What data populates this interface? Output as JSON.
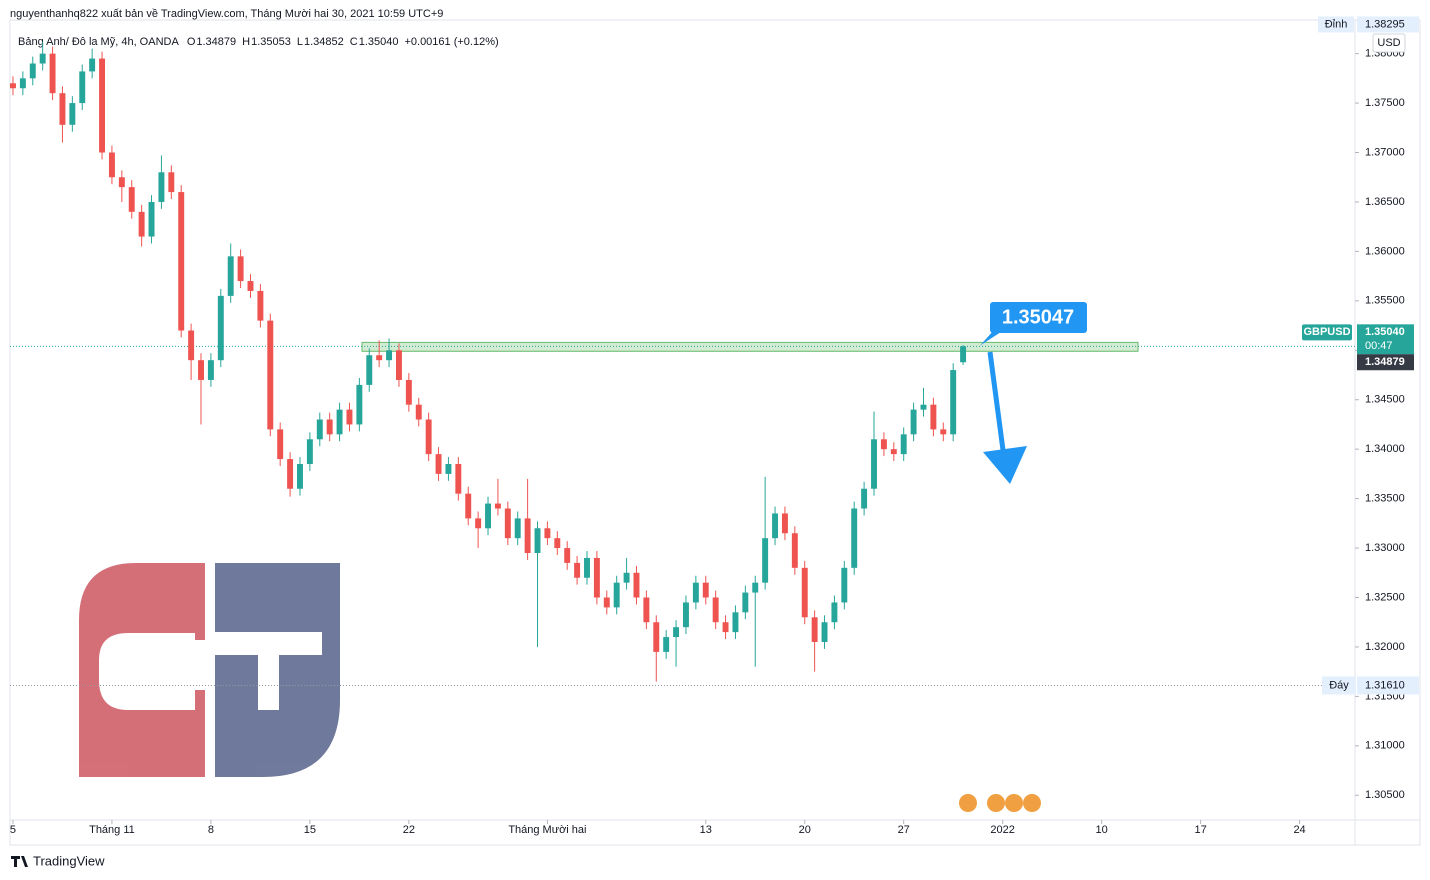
{
  "chart_data": {
    "type": "candlestick",
    "title": "nguyenthanhq822 xuất bản về TradingView.com, Tháng Mười hai 30, 2021 10:59 UTC+9",
    "symbol": "Bảng Anh/ Đô la Mỹ, 4h, OANDA",
    "legend_values": [
      {
        "name": "O",
        "value": 1.34879,
        "label": "1.34879"
      },
      {
        "name": "H",
        "value": 1.35053,
        "label": "1.35053"
      },
      {
        "name": "L",
        "value": 1.34852,
        "label": "1.34852"
      },
      {
        "name": "C",
        "value": 1.3504,
        "label": "1.35040"
      }
    ],
    "change": "+0.00161 (+0.12%)",
    "currency": "USD",
    "ticker": "GBPUSD",
    "last_price": {
      "value": 1.3504,
      "label": "1.35040"
    },
    "countdown": "00:47",
    "open_price": {
      "value": 1.34879,
      "label": "1.34879"
    },
    "high_marker": {
      "name": "Đỉnh",
      "value": 1.38295,
      "label": "1.38295"
    },
    "low_marker": {
      "name": "Đáy",
      "value": 1.3161,
      "label": "1.31610"
    },
    "callout": {
      "value": 1.35047,
      "label": "1.35047"
    },
    "zone": [
      1.3499,
      1.3508
    ],
    "colors": {
      "up": "#26a69a",
      "down": "#ef5350"
    },
    "brand": "TradingView",
    "x": [
      0,
      0.5,
      1,
      1.5,
      2,
      2.5,
      3,
      3.5,
      4,
      4.5,
      5,
      5.5,
      6,
      6.5,
      7,
      7.5,
      8,
      8.5,
      9,
      9.5,
      10,
      10.5,
      11,
      11.5,
      12,
      12.5,
      13,
      13.5,
      14,
      14.5,
      15,
      15.5,
      16,
      16.5,
      17,
      17.5,
      18,
      18.5,
      19,
      19.5,
      20,
      20.5,
      21,
      21.5,
      22,
      22.5,
      23,
      23.5,
      24,
      24.5,
      25,
      25.5,
      26,
      26.5,
      27,
      27.5,
      28,
      28.5,
      29,
      29.5,
      30,
      30.5,
      31,
      31.5,
      32,
      32.5,
      33,
      33.5,
      34,
      34.5,
      35,
      35.5,
      36,
      36.5,
      37,
      37.5,
      38,
      38.5,
      39,
      39.5,
      40,
      40.5,
      41,
      41.5,
      42,
      42.5,
      43,
      43.5,
      44,
      44.5,
      45,
      45.5,
      46,
      46.5,
      47,
      47.5,
      48
    ],
    "open": [
      1.377,
      1.3765,
      1.3775,
      1.379,
      1.38,
      1.376,
      1.3728,
      1.375,
      1.3782,
      1.3795,
      1.37,
      1.3675,
      1.3665,
      1.364,
      1.3615,
      1.365,
      1.368,
      1.366,
      1.352,
      1.349,
      1.347,
      1.349,
      1.3555,
      1.3595,
      1.357,
      1.356,
      1.353,
      1.342,
      1.339,
      1.336,
      1.3385,
      1.341,
      1.343,
      1.3415,
      1.344,
      1.3425,
      1.3465,
      1.3495,
      1.349,
      1.35,
      1.347,
      1.3445,
      1.343,
      1.3395,
      1.3375,
      1.3385,
      1.3355,
      1.333,
      1.332,
      1.3345,
      1.334,
      1.331,
      1.333,
      1.3295,
      1.332,
      1.331,
      1.33,
      1.3285,
      1.327,
      1.329,
      1.325,
      1.324,
      1.3265,
      1.3275,
      1.325,
      1.3225,
      1.3195,
      1.321,
      1.322,
      1.3245,
      1.3265,
      1.325,
      1.3225,
      1.3215,
      1.3235,
      1.3255,
      1.3265,
      1.331,
      1.3335,
      1.3315,
      1.328,
      1.323,
      1.3205,
      1.3225,
      1.3245,
      1.328,
      1.334,
      1.336,
      1.341,
      1.34,
      1.3395,
      1.3415,
      1.344,
      1.3445,
      1.342,
      1.3415,
      1.34879
    ],
    "high": [
      1.3777,
      1.3782,
      1.3797,
      1.3812,
      1.3807,
      1.3767,
      1.3757,
      1.3789,
      1.3805,
      1.3802,
      1.3707,
      1.3682,
      1.3672,
      1.3647,
      1.3657,
      1.3697,
      1.3687,
      1.3667,
      1.3527,
      1.3497,
      1.3497,
      1.3562,
      1.3608,
      1.3602,
      1.3577,
      1.3567,
      1.3537,
      1.3427,
      1.3397,
      1.3392,
      1.3417,
      1.3437,
      1.3437,
      1.3447,
      1.3447,
      1.3472,
      1.3502,
      1.351,
      1.3512,
      1.3507,
      1.3477,
      1.3452,
      1.3437,
      1.3402,
      1.3392,
      1.3392,
      1.3362,
      1.3337,
      1.3352,
      1.337,
      1.3347,
      1.3337,
      1.337,
      1.3327,
      1.3327,
      1.3317,
      1.3307,
      1.3292,
      1.3297,
      1.3297,
      1.3257,
      1.3272,
      1.329,
      1.3282,
      1.3257,
      1.3232,
      1.3217,
      1.3227,
      1.3252,
      1.3272,
      1.3272,
      1.3257,
      1.3232,
      1.3242,
      1.3262,
      1.3272,
      1.3372,
      1.3342,
      1.3342,
      1.3322,
      1.3287,
      1.3237,
      1.3232,
      1.3252,
      1.3287,
      1.3347,
      1.3367,
      1.3438,
      1.3417,
      1.3407,
      1.3422,
      1.3447,
      1.3462,
      1.3452,
      1.3427,
      1.3487,
      1.35053
    ],
    "low": [
      1.3758,
      1.3758,
      1.3768,
      1.3783,
      1.3753,
      1.371,
      1.3721,
      1.3743,
      1.3775,
      1.3693,
      1.3668,
      1.365,
      1.3633,
      1.3605,
      1.3608,
      1.3643,
      1.3653,
      1.3513,
      1.347,
      1.3425,
      1.3463,
      1.3483,
      1.3548,
      1.3563,
      1.3553,
      1.3523,
      1.3413,
      1.3383,
      1.3352,
      1.3353,
      1.3378,
      1.3403,
      1.3408,
      1.3408,
      1.3418,
      1.3418,
      1.3458,
      1.3483,
      1.3483,
      1.3463,
      1.3438,
      1.3423,
      1.3388,
      1.3368,
      1.3368,
      1.3348,
      1.3323,
      1.33,
      1.3313,
      1.3333,
      1.3303,
      1.3303,
      1.3288,
      1.32,
      1.3303,
      1.3293,
      1.3278,
      1.3263,
      1.3263,
      1.3243,
      1.3233,
      1.3233,
      1.3258,
      1.3243,
      1.3218,
      1.3165,
      1.3188,
      1.318,
      1.3213,
      1.3238,
      1.3243,
      1.3218,
      1.3208,
      1.3208,
      1.3228,
      1.318,
      1.3258,
      1.3303,
      1.3308,
      1.3273,
      1.3223,
      1.3175,
      1.3198,
      1.3218,
      1.3238,
      1.3273,
      1.3333,
      1.3353,
      1.3393,
      1.3388,
      1.3388,
      1.3408,
      1.3433,
      1.3413,
      1.3408,
      1.3408,
      1.34852
    ],
    "close": [
      1.3765,
      1.3775,
      1.379,
      1.38,
      1.376,
      1.3728,
      1.375,
      1.3782,
      1.3795,
      1.37,
      1.3675,
      1.3665,
      1.364,
      1.3615,
      1.365,
      1.368,
      1.366,
      1.352,
      1.349,
      1.347,
      1.349,
      1.3555,
      1.3595,
      1.357,
      1.356,
      1.353,
      1.342,
      1.339,
      1.336,
      1.3385,
      1.341,
      1.343,
      1.3415,
      1.344,
      1.3425,
      1.3465,
      1.3495,
      1.349,
      1.35,
      1.347,
      1.3445,
      1.343,
      1.3395,
      1.3375,
      1.3385,
      1.3355,
      1.333,
      1.332,
      1.3345,
      1.334,
      1.331,
      1.333,
      1.3295,
      1.332,
      1.331,
      1.33,
      1.3285,
      1.327,
      1.329,
      1.325,
      1.324,
      1.3265,
      1.3275,
      1.325,
      1.3225,
      1.3195,
      1.321,
      1.322,
      1.3245,
      1.3265,
      1.325,
      1.3225,
      1.3215,
      1.3235,
      1.3255,
      1.3265,
      1.331,
      1.3335,
      1.3315,
      1.328,
      1.323,
      1.3205,
      1.3225,
      1.3245,
      1.328,
      1.334,
      1.336,
      1.341,
      1.34,
      1.3395,
      1.3415,
      1.344,
      1.3445,
      1.342,
      1.3415,
      1.348,
      1.3504
    ],
    "xlim": [
      -0.15,
      67.8
    ],
    "ylim": [
      1.3025,
      1.3834
    ],
    "xticks": [
      {
        "value": 0,
        "label": "5"
      },
      {
        "value": 5,
        "label": "Tháng 11"
      },
      {
        "value": 10,
        "label": "8"
      },
      {
        "value": 15,
        "label": "15"
      },
      {
        "value": 20,
        "label": "22"
      },
      {
        "value": 27,
        "label": "Tháng Mười hai"
      },
      {
        "value": 35,
        "label": "13"
      },
      {
        "value": 40,
        "label": "20"
      },
      {
        "value": 45,
        "label": "27"
      },
      {
        "value": 50,
        "label": "2022"
      },
      {
        "value": 55,
        "label": "10"
      },
      {
        "value": 60,
        "label": "17"
      },
      {
        "value": 65,
        "label": "24"
      }
    ],
    "yticks": [
      {
        "value": 1.305,
        "label": "1.30500"
      },
      {
        "value": 1.31,
        "label": "1.31000"
      },
      {
        "value": 1.315,
        "label": "1.31500"
      },
      {
        "value": 1.32,
        "label": "1.32000"
      },
      {
        "value": 1.325,
        "label": "1.32500"
      },
      {
        "value": 1.33,
        "label": "1.33000"
      },
      {
        "value": 1.335,
        "label": "1.33500"
      },
      {
        "value": 1.34,
        "label": "1.34000"
      },
      {
        "value": 1.345,
        "label": "1.34500"
      },
      {
        "value": 1.35,
        "label": "1.35000"
      },
      {
        "value": 1.355,
        "label": "1.35500"
      },
      {
        "value": 1.36,
        "label": "1.36000"
      },
      {
        "value": 1.365,
        "label": "1.36500"
      },
      {
        "value": 1.37,
        "label": "1.37000"
      },
      {
        "value": 1.375,
        "label": "1.37500"
      },
      {
        "value": 1.38,
        "label": "1.38000"
      }
    ]
  }
}
